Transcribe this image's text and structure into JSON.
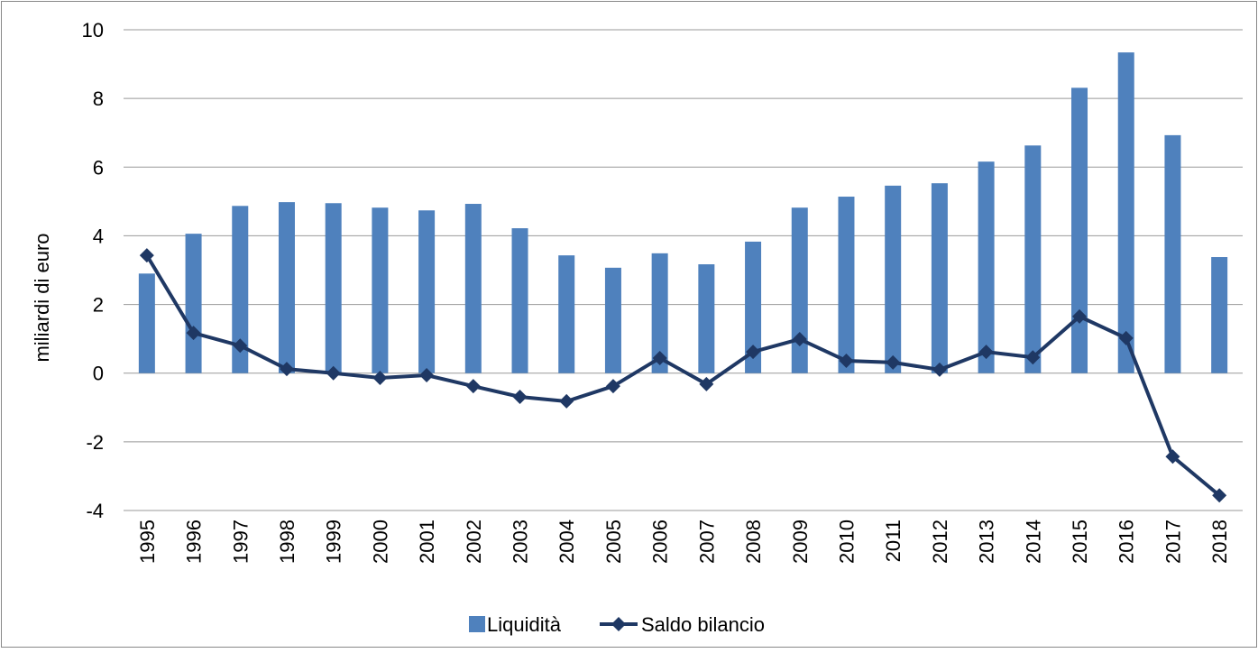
{
  "chart_data": {
    "type": "bar-line",
    "y_label": "miliardi di euro",
    "categories": [
      "1995",
      "1996",
      "1997",
      "1998",
      "1999",
      "2000",
      "2001",
      "2002",
      "2003",
      "2004",
      "2005",
      "2006",
      "2007",
      "2008",
      "2009",
      "2010",
      "2011",
      "2012",
      "2013",
      "2014",
      "2015",
      "2016",
      "2017",
      "2018"
    ],
    "series": [
      {
        "name": "Liquidità",
        "type": "bar",
        "color": "#4f81bd",
        "values": [
          2.9,
          4.06,
          4.87,
          4.98,
          4.95,
          4.82,
          4.74,
          4.93,
          4.22,
          3.43,
          3.07,
          3.49,
          3.17,
          3.83,
          4.82,
          5.14,
          5.46,
          5.53,
          6.16,
          6.63,
          8.31,
          9.34,
          6.93,
          3.38
        ]
      },
      {
        "name": "Saldo bilancio",
        "type": "line",
        "color": "#1f3864",
        "values": [
          3.43,
          1.17,
          0.8,
          0.12,
          0,
          -0.14,
          -0.06,
          -0.38,
          -0.69,
          -0.82,
          -0.38,
          0.44,
          -0.32,
          0.62,
          0.99,
          0.36,
          0.31,
          0.1,
          0.62,
          0.46,
          1.65,
          1.02,
          -2.43,
          -3.56
        ]
      }
    ],
    "ylim": [
      -4,
      10
    ],
    "yticks": [
      -4,
      -2,
      0,
      2,
      4,
      6,
      8,
      10
    ],
    "grid": true,
    "legend": "bottom"
  }
}
